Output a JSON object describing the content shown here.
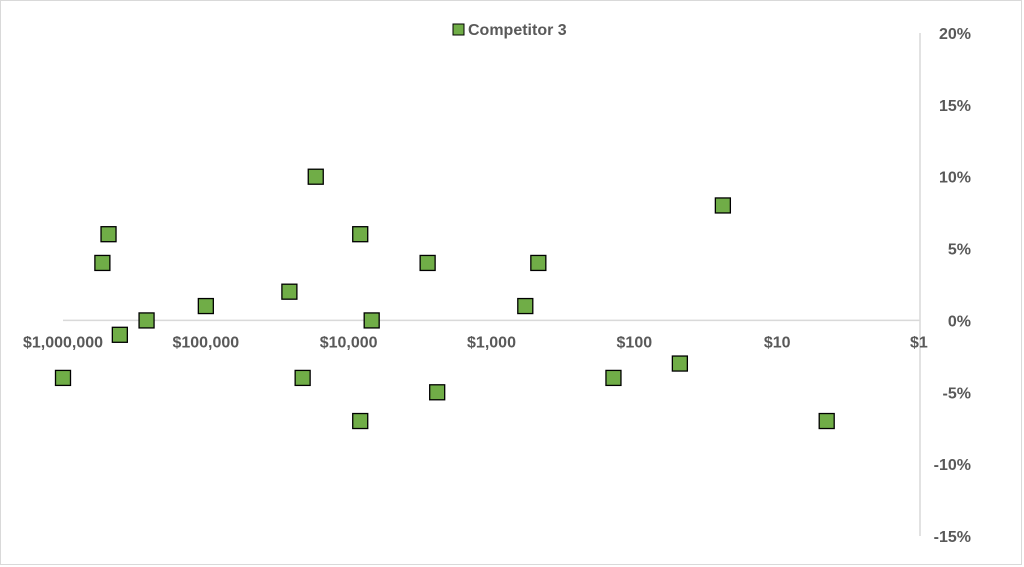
{
  "chart_data": {
    "type": "scatter",
    "title": "",
    "xlabel": "",
    "ylabel": "",
    "x_scale": "log",
    "x_reversed": true,
    "xlim": [
      1,
      1000000
    ],
    "ylim": [
      -15,
      20
    ],
    "x_ticks": [
      1000000,
      100000,
      10000,
      1000,
      100,
      10,
      1
    ],
    "x_tick_labels": [
      "$1,000,000",
      "$100,000",
      "$10,000",
      "$1,000",
      "$100",
      "$10",
      "$1"
    ],
    "y_ticks": [
      20,
      15,
      10,
      5,
      0,
      -5,
      -10,
      -15
    ],
    "y_tick_labels": [
      "20%",
      "15%",
      "10%",
      "5%",
      "0%",
      "-5%",
      "-10%",
      "-15%"
    ],
    "grid": false,
    "legend_position": "top-center",
    "series": [
      {
        "name": "Competitor 3",
        "color": "#70ad47",
        "marker": "square",
        "points": [
          {
            "x": 1000000,
            "y": -4
          },
          {
            "x": 530000,
            "y": 4
          },
          {
            "x": 480000,
            "y": 6
          },
          {
            "x": 400000,
            "y": -1
          },
          {
            "x": 260000,
            "y": 0
          },
          {
            "x": 100000,
            "y": 1
          },
          {
            "x": 26000,
            "y": 2
          },
          {
            "x": 21000,
            "y": -4
          },
          {
            "x": 17000,
            "y": 10
          },
          {
            "x": 8300,
            "y": 6
          },
          {
            "x": 8300,
            "y": -7
          },
          {
            "x": 6900,
            "y": 0
          },
          {
            "x": 2800,
            "y": 4
          },
          {
            "x": 2400,
            "y": -5
          },
          {
            "x": 580,
            "y": 1
          },
          {
            "x": 470,
            "y": 4
          },
          {
            "x": 140,
            "y": -4
          },
          {
            "x": 48,
            "y": -3
          },
          {
            "x": 24,
            "y": 8
          },
          {
            "x": 4.5,
            "y": -7
          }
        ]
      }
    ]
  }
}
